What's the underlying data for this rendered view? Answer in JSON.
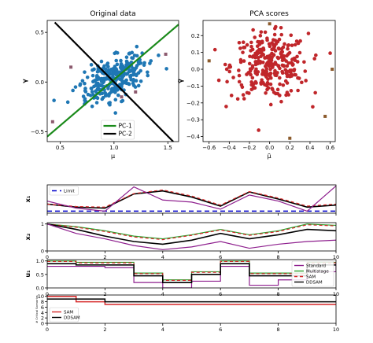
{
  "chart_data": [
    {
      "type": "scatter",
      "title": "Original data",
      "xlabel": "μ",
      "ylabel": "γ",
      "xlim": [
        0.38,
        1.6
      ],
      "ylim": [
        -0.6,
        0.62
      ],
      "xticks": [
        0.5,
        1.0,
        1.5
      ],
      "yticks": [
        -0.5,
        0.0,
        0.5
      ],
      "xtick_labels": [
        "0.5",
        "1.0",
        "1.5"
      ],
      "ytick_labels": [
        "−0.5",
        "0.0",
        "0.5"
      ],
      "legend": {
        "placement": "lower center",
        "entries": [
          {
            "label": "PC-1",
            "color": "#1a8a1a"
          },
          {
            "label": "PC-2",
            "color": "#000000"
          }
        ]
      },
      "series": [
        {
          "kind": "cloud",
          "color": "#1f77b4",
          "n": 300,
          "mean": [
            1.0,
            0.04
          ],
          "sd_major": 0.17,
          "sd_minor": 0.09,
          "angle_deg": 32
        },
        {
          "kind": "points",
          "color": "#8c5a6e",
          "points": [
            [
              0.6,
              0.15
            ],
            [
              1.48,
              0.28
            ],
            [
              0.43,
              -0.4
            ],
            [
              1.07,
              -0.15
            ],
            [
              1.2,
              -0.1
            ]
          ]
        }
      ],
      "lines": [
        {
          "label": "PC-1",
          "color": "#1a8a1a",
          "points": [
            [
              0.38,
              -0.55
            ],
            [
              1.6,
              0.58
            ]
          ]
        },
        {
          "label": "PC-2",
          "color": "#000000",
          "points": [
            [
              0.45,
              0.6
            ],
            [
              1.55,
              -0.6
            ]
          ]
        }
      ]
    },
    {
      "type": "scatter",
      "title": "PCA scores",
      "xlabel": "μ̃",
      "ylabel": "γ̃",
      "xlim": [
        -0.66,
        0.65
      ],
      "ylim": [
        -0.43,
        0.29
      ],
      "xticks": [
        -0.6,
        -0.4,
        -0.2,
        0.0,
        0.2,
        0.4,
        0.6
      ],
      "yticks": [
        -0.4,
        -0.3,
        -0.2,
        -0.1,
        0.0,
        0.1,
        0.2
      ],
      "xtick_labels": [
        "−0.6",
        "−0.4",
        "−0.2",
        "0.0",
        "0.2",
        "0.4",
        "0.6"
      ],
      "ytick_labels": [
        "−0.4",
        "−0.3",
        "−0.2",
        "−0.1",
        "0.0",
        "0.1",
        "0.2"
      ],
      "series": [
        {
          "kind": "cloud",
          "color": "#c0262a",
          "n": 300,
          "mean": [
            0.0,
            0.02
          ],
          "sd_major": 0.19,
          "sd_minor": 0.095,
          "angle_deg": 0
        },
        {
          "kind": "points",
          "color": "#8b5a2b",
          "points": [
            [
              0.0,
              0.27
            ],
            [
              -0.6,
              0.05
            ],
            [
              0.62,
              0.0
            ],
            [
              0.2,
              -0.41
            ],
            [
              0.55,
              -0.28
            ]
          ]
        }
      ]
    },
    {
      "type": "line",
      "ylabel": "x₁",
      "xlim": [
        0,
        10
      ],
      "ylim": [
        -0.25,
        1.15
      ],
      "xticks": [
        0,
        2,
        4,
        6,
        8,
        10
      ],
      "xtick_labels": [],
      "yticks": [],
      "legend": {
        "placement": "top-left",
        "entries": [
          {
            "label": "Limit",
            "color": "#0000cc",
            "dash": "6,4"
          }
        ]
      },
      "series": [
        {
          "name": "Limit",
          "color": "#0000cc",
          "dash": "6,4",
          "width": 1.5,
          "x": [
            0,
            10
          ],
          "y": [
            -0.15,
            -0.15
          ]
        },
        {
          "color": "#000000",
          "width": 1.6,
          "x": [
            0,
            1,
            2,
            3,
            4,
            5,
            6,
            7,
            8,
            9,
            10
          ],
          "y": [
            0.2,
            0.05,
            0.0,
            0.7,
            0.85,
            0.55,
            0.1,
            0.8,
            0.45,
            0.05,
            0.15
          ]
        },
        {
          "color": "#d62728",
          "dash": "4,3",
          "width": 1.2,
          "x": [
            0,
            1,
            2,
            3,
            4,
            5,
            6,
            7,
            8,
            9,
            10
          ],
          "y": [
            0.2,
            0.08,
            0.05,
            0.72,
            0.9,
            0.6,
            0.15,
            0.82,
            0.5,
            0.1,
            0.2
          ]
        },
        {
          "color": "#8e1f8e",
          "width": 1.2,
          "x": [
            0,
            1,
            2,
            3,
            4,
            5,
            6,
            7,
            8,
            9,
            10
          ],
          "y": [
            0.35,
            0.0,
            -0.15,
            1.05,
            0.4,
            0.3,
            -0.05,
            0.65,
            0.35,
            -0.15,
            1.1
          ]
        }
      ]
    },
    {
      "type": "line",
      "ylabel": "x₂",
      "xlim": [
        0,
        10
      ],
      "ylim": [
        0,
        1.05
      ],
      "xticks": [
        0,
        2,
        4,
        6,
        8,
        10
      ],
      "xtick_labels": [
        "0",
        "2",
        "4",
        "6",
        "8",
        "10"
      ],
      "yticks": [
        0,
        1
      ],
      "ytick_labels": [
        "0",
        "1"
      ],
      "series": [
        {
          "color": "#2ca02c",
          "width": 1.2,
          "x": [
            0,
            1,
            2,
            3,
            4,
            5,
            6,
            7,
            8,
            9,
            10
          ],
          "y": [
            1.0,
            0.9,
            0.75,
            0.55,
            0.45,
            0.6,
            0.8,
            0.6,
            0.75,
            1.0,
            0.95
          ]
        },
        {
          "color": "#d62728",
          "dash": "4,3",
          "width": 1.2,
          "x": [
            0,
            1,
            2,
            3,
            4,
            5,
            6,
            7,
            8,
            9,
            10
          ],
          "y": [
            1.0,
            0.88,
            0.72,
            0.52,
            0.42,
            0.58,
            0.78,
            0.58,
            0.72,
            0.97,
            0.93
          ]
        },
        {
          "color": "#000000",
          "width": 1.6,
          "x": [
            0,
            1,
            2,
            3,
            4,
            5,
            6,
            7,
            8,
            9,
            10
          ],
          "y": [
            1.0,
            0.8,
            0.55,
            0.35,
            0.25,
            0.4,
            0.65,
            0.45,
            0.6,
            0.8,
            0.75
          ]
        },
        {
          "color": "#8e1f8e",
          "width": 1.2,
          "x": [
            0,
            1,
            2,
            3,
            4,
            5,
            6,
            7,
            8,
            9,
            10
          ],
          "y": [
            1.0,
            0.65,
            0.45,
            0.2,
            0.05,
            0.15,
            0.35,
            0.1,
            0.25,
            0.35,
            0.4
          ]
        }
      ]
    },
    {
      "type": "line",
      "step": true,
      "ylabel": "u₁",
      "xlim": [
        0,
        10
      ],
      "ylim": [
        0,
        1.05
      ],
      "xticks": [
        0,
        2,
        4,
        6,
        8,
        10
      ],
      "xtick_labels": [
        "0",
        "2",
        "4",
        "6",
        "8",
        "10"
      ],
      "yticks": [
        0,
        0.5,
        1.0
      ],
      "ytick_labels": [
        "0.0",
        "0.5",
        "1.0"
      ],
      "legend": {
        "placement": "bottom-right",
        "entries": [
          {
            "label": "Standard",
            "color": "#8e1f8e"
          },
          {
            "label": "Multistage",
            "color": "#2ca02c"
          },
          {
            "label": "SAM",
            "color": "#d62728",
            "dash": "4,3"
          },
          {
            "label": "DDSAM",
            "color": "#000000"
          }
        ]
      },
      "series": [
        {
          "name": "Standard",
          "color": "#8e1f8e",
          "width": 1.2,
          "x": [
            0,
            1,
            2,
            3,
            4,
            5,
            6,
            7,
            8,
            9,
            10
          ],
          "y": [
            0.8,
            0.8,
            0.75,
            0.2,
            0.0,
            0.25,
            0.8,
            0.1,
            0.3,
            0.6,
            0.95
          ]
        },
        {
          "name": "Multistage",
          "color": "#2ca02c",
          "width": 1.2,
          "x": [
            0,
            1,
            2,
            3,
            4,
            5,
            6,
            7,
            8,
            9,
            10
          ],
          "y": [
            1.0,
            0.95,
            0.95,
            0.55,
            0.3,
            0.6,
            1.0,
            0.55,
            0.55,
            0.95,
            0.95
          ]
        },
        {
          "name": "SAM",
          "color": "#d62728",
          "dash": "4,3",
          "width": 1.2,
          "x": [
            0,
            1,
            2,
            3,
            4,
            5,
            6,
            7,
            8,
            9,
            10
          ],
          "y": [
            0.98,
            0.93,
            0.93,
            0.53,
            0.28,
            0.58,
            0.98,
            0.53,
            0.53,
            0.93,
            0.93
          ]
        },
        {
          "name": "DDSAM",
          "color": "#000000",
          "width": 1.6,
          "x": [
            0,
            1,
            2,
            3,
            4,
            5,
            6,
            7,
            8,
            9,
            10
          ],
          "y": [
            0.9,
            0.85,
            0.85,
            0.45,
            0.2,
            0.5,
            0.9,
            0.45,
            0.45,
            0.85,
            0.85
          ]
        }
      ]
    },
    {
      "type": "line",
      "step": true,
      "ylabel": "# Critical Scenarios",
      "xlim": [
        0,
        10
      ],
      "ylim": [
        0,
        10.5
      ],
      "xticks": [
        0,
        2,
        4,
        6,
        8,
        10
      ],
      "xtick_labels": [
        "0",
        "2",
        "4",
        "6",
        "8",
        "10"
      ],
      "yticks": [
        0,
        2,
        4,
        6,
        8,
        10
      ],
      "ytick_labels": [
        "0",
        "2",
        "4",
        "6",
        "8",
        "10"
      ],
      "legend": {
        "placement": "bottom-left",
        "entries": [
          {
            "label": "SAM",
            "color": "#d62728"
          },
          {
            "label": "DDSAM",
            "color": "#000000"
          }
        ]
      },
      "series": [
        {
          "name": "SAM",
          "color": "#d62728",
          "width": 1.5,
          "x": [
            0,
            1,
            2,
            3,
            4,
            5,
            6,
            7,
            8,
            9,
            10
          ],
          "y": [
            10,
            8,
            7,
            7,
            7,
            7,
            7,
            7,
            7,
            7,
            7
          ]
        },
        {
          "name": "DDSAM",
          "color": "#000000",
          "width": 1.5,
          "x": [
            0,
            1,
            2,
            3,
            4,
            5,
            6,
            7,
            8,
            9,
            10
          ],
          "y": [
            9,
            9,
            8,
            8,
            8,
            8,
            8,
            8,
            8,
            8,
            8
          ]
        }
      ]
    }
  ]
}
